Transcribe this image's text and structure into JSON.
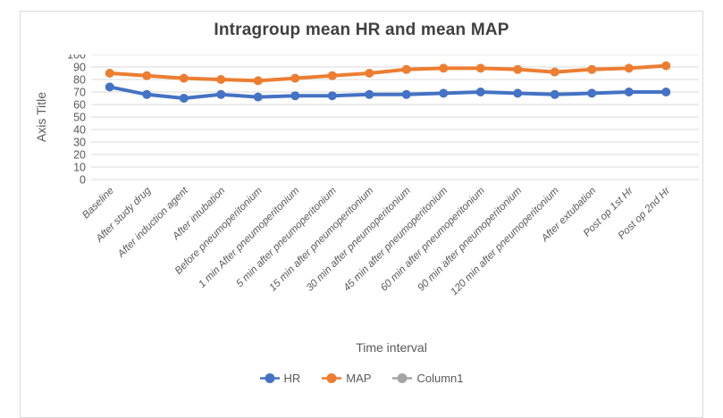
{
  "chart_data": {
    "type": "line",
    "title": "Intragroup mean HR and mean MAP",
    "xlabel": "Time interval",
    "ylabel": "Axis Title",
    "ylim": [
      0,
      100
    ],
    "ytick_step": 10,
    "grid": true,
    "legend_position": "bottom-center",
    "marker": "circle",
    "category_label_style": "italic, rotated 45deg",
    "categories": [
      "Baseline",
      "After study drug",
      "After induction agent",
      "After intubation",
      "Before pneumoperitonium",
      "1 min After pneumoperitonium",
      "5 min after pneumoperitonium",
      "15 min after pneumoperitonium",
      "30 min after pneumoperitonium",
      "45 min after pneumoperitonium",
      "60 min after pneumoperitonium",
      "90 min after pneumoperitonium",
      "120 min after pneumoperitonium",
      "After extubation",
      "Post op 1st Hr",
      "Post op 2nd Hr"
    ],
    "series": [
      {
        "name": "HR",
        "color": "#4472C4",
        "values": [
          74,
          68,
          65,
          68,
          66,
          67,
          67,
          68,
          68,
          69,
          70,
          69,
          68,
          69,
          70,
          70
        ]
      },
      {
        "name": "MAP",
        "color": "#ED7D31",
        "values": [
          85,
          83,
          81,
          80,
          79,
          81,
          83,
          85,
          88,
          89,
          89,
          88,
          86,
          88,
          89,
          91
        ]
      },
      {
        "name": "Column1",
        "color": "#A5A5A5",
        "values": []
      }
    ],
    "colors": {
      "gridline": "#D9D9D9",
      "axis_text": "#595959",
      "title_text": "#404040",
      "background": "#FFFFFF"
    }
  }
}
